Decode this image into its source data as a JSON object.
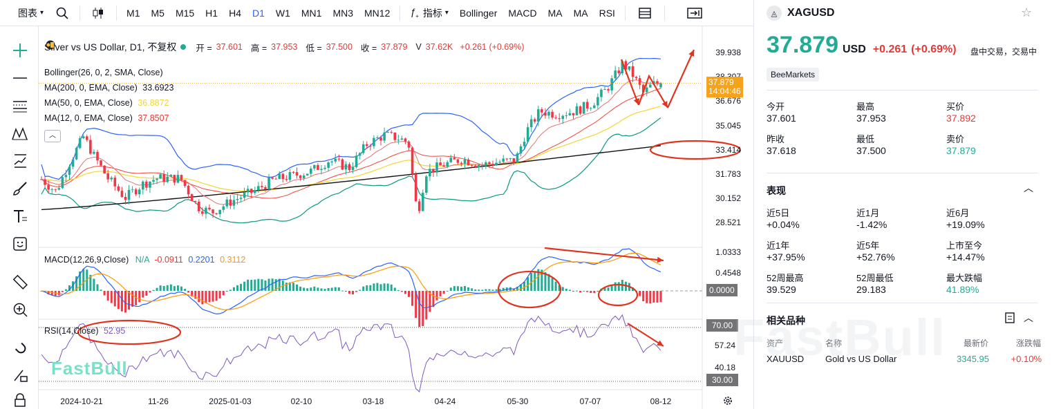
{
  "toolbar": {
    "chart_type": "图表",
    "timeframes": [
      "M1",
      "M5",
      "M15",
      "H1",
      "H4",
      "D1",
      "W1",
      "MN1",
      "MN3",
      "MN12"
    ],
    "active_timeframe": "D1",
    "indicators_label": "指标",
    "indicators": [
      "Bollinger",
      "MACD",
      "MA",
      "MA",
      "RSI"
    ]
  },
  "legend": {
    "symbol_line": "Silver vs US Dollar, D1, 不复权",
    "open_label": "开 =",
    "open": "37.601",
    "high_label": "高 =",
    "high": "37.953",
    "low_label": "低 =",
    "low": "37.500",
    "close_label": "收 =",
    "close": "37.879",
    "vol_label": "V",
    "vol": "37.62K",
    "change": "+0.261 (+0.69%)",
    "bollinger": "Bollinger(26, 0, 2, SMA, Close)",
    "ma200_label": "MA(200, 0, EMA, Close)",
    "ma200": "33.6923",
    "ma50_label": "MA(50, 0, EMA, Close)",
    "ma50": "36.8872",
    "ma12_label": "MA(12, 0, EMA, Close)",
    "ma12": "37.8507",
    "macd_label": "MACD(12,26,9,Close)",
    "macd_na": "N/A",
    "macd_v1": "-0.0911",
    "macd_v2": "0.2201",
    "macd_v3": "0.3112",
    "rsi_label": "RSI(14,Close)",
    "rsi": "52.95"
  },
  "price_axis": [
    "39.938",
    "38.307",
    "36.676",
    "35.045",
    "33.414",
    "31.783",
    "30.152",
    "28.521"
  ],
  "price_tag": {
    "price": "37.879",
    "countdown": "14:04:46"
  },
  "macd_axis": [
    "1.0333",
    "0.4548"
  ],
  "macd_zero": "0.0000",
  "rsi_axis": [
    "70.00",
    "57.24",
    "40.18"
  ],
  "rsi_low": "30.00",
  "date_axis": [
    "2024-10-21",
    "11-26",
    "2025-01-03",
    "02-10",
    "03-18",
    "04-24",
    "05-30",
    "07-07",
    "08-12"
  ],
  "watermark": "FastBull",
  "chart_data": {
    "type": "line",
    "symbol": "XAGUSD",
    "x": [
      "2024-10-21",
      "11-26",
      "2025-01-03",
      "02-10",
      "03-18",
      "04-24",
      "05-30",
      "07-07",
      "08-12"
    ],
    "series": [
      {
        "name": "Silver vs US Dollar",
        "values": [
          33.3,
          30.6,
          29.5,
          31.9,
          34.0,
          32.7,
          33.4,
          36.4,
          37.879
        ]
      }
    ],
    "ylim": [
      28.0,
      40.8
    ]
  },
  "panel": {
    "symbol": "XAGUSD",
    "price": "37.879",
    "currency": "USD",
    "change": "+0.261",
    "change_pct": "(+0.69%)",
    "status": "盘中交易，交易中",
    "broker": "BeeMarkets",
    "stats": [
      {
        "label": "今开",
        "value": "37.601",
        "tone": ""
      },
      {
        "label": "最高",
        "value": "37.953",
        "tone": ""
      },
      {
        "label": "买价",
        "value": "37.892",
        "tone": "up"
      },
      {
        "label": "昨收",
        "value": "37.618",
        "tone": ""
      },
      {
        "label": "最低",
        "value": "37.500",
        "tone": ""
      },
      {
        "label": "卖价",
        "value": "37.879",
        "tone": "gr"
      }
    ],
    "perf_title": "表现",
    "perf": [
      {
        "label": "近5日",
        "value": "+0.04%",
        "tone": ""
      },
      {
        "label": "近1月",
        "value": "-1.42%",
        "tone": ""
      },
      {
        "label": "近6月",
        "value": "+19.09%",
        "tone": ""
      },
      {
        "label": "近1年",
        "value": "+37.95%",
        "tone": ""
      },
      {
        "label": "近5年",
        "value": "+52.76%",
        "tone": ""
      },
      {
        "label": "上市至今",
        "value": "+14.47%",
        "tone": ""
      },
      {
        "label": "52周最高",
        "value": "39.529",
        "tone": ""
      },
      {
        "label": "52周最低",
        "value": "29.183",
        "tone": ""
      },
      {
        "label": "最大跌幅",
        "value": "41.89%",
        "tone": "gr"
      }
    ],
    "related_title": "相关品种",
    "related_cols": [
      "资产",
      "名称",
      "最新价",
      "涨跌幅"
    ],
    "related_rows": [
      {
        "asset": "XAUUSD",
        "name": "Gold vs US Dollar",
        "price": "3345.95",
        "change": "+0.10%"
      }
    ]
  },
  "colors": {
    "up": "#22ab94",
    "down": "#f23645",
    "accent": "#2962ff",
    "annot": "#e0341e"
  }
}
